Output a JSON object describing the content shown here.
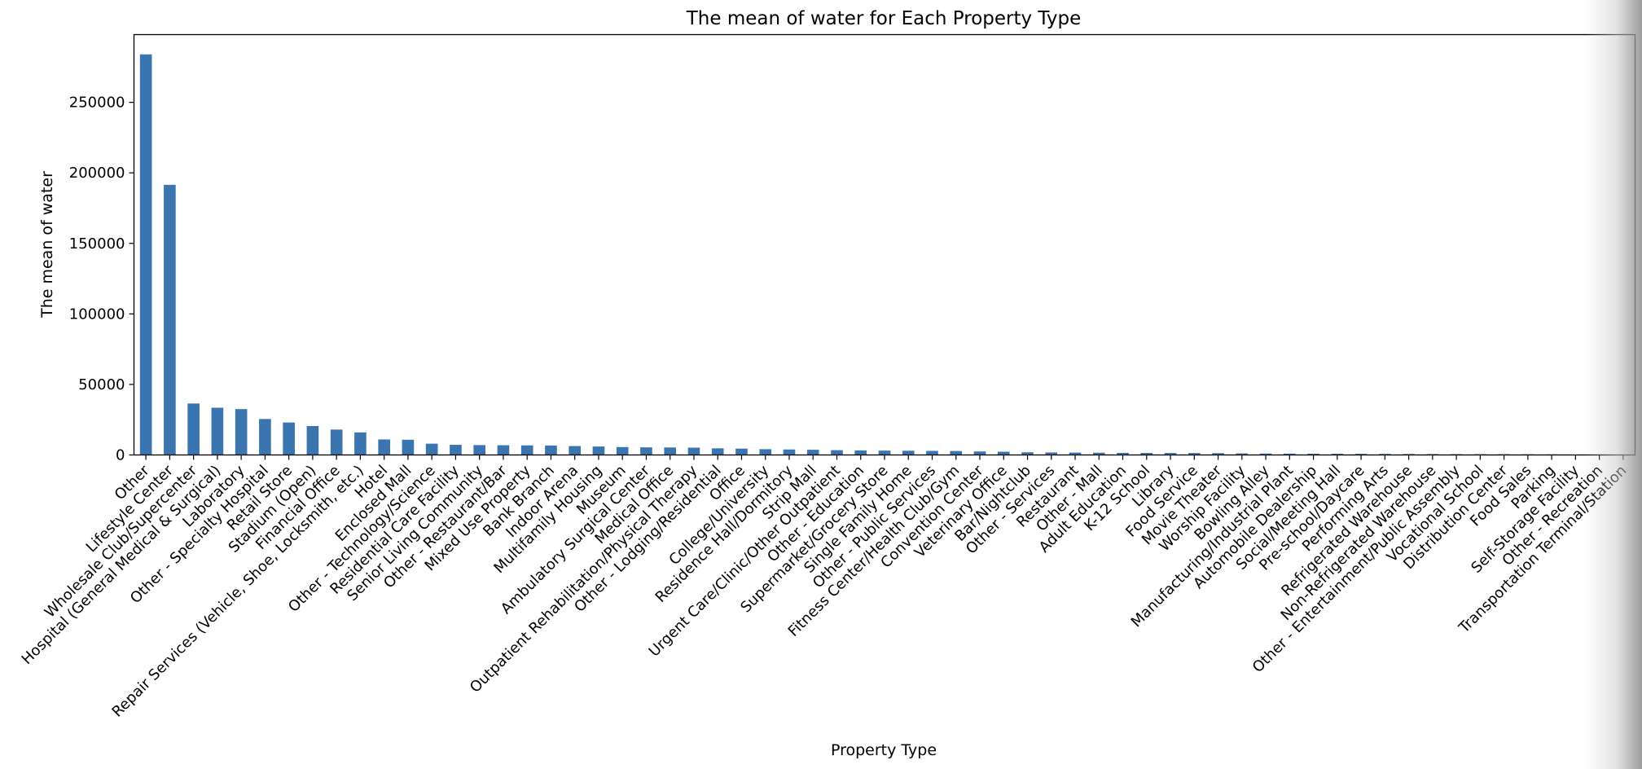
{
  "chart_data": {
    "type": "bar",
    "title": "The mean of water for Each Property Type",
    "xlabel": "Property Type",
    "ylabel": "The mean of water",
    "ylim": [
      0,
      298000
    ],
    "yticks": [
      0,
      50000,
      100000,
      150000,
      200000,
      250000
    ],
    "bar_color": "#3b75af",
    "grid": false,
    "categories": [
      "Other",
      "Lifestyle Center",
      "Wholesale Club/Supercenter",
      "Hospital (General Medical & Surgical)",
      "Laboratory",
      "Other - Specialty Hospital",
      "Retail Store",
      "Stadium (Open)",
      "Financial Office",
      "Repair Services (Vehicle, Shoe, Locksmith, etc.)",
      "Hotel",
      "Enclosed Mall",
      "Other - Technology/Science",
      "Residential Care Facility",
      "Senior Living Community",
      "Other - Restaurant/Bar",
      "Mixed Use Property",
      "Bank Branch",
      "Indoor Arena",
      "Multifamily Housing",
      "Museum",
      "Ambulatory Surgical Center",
      "Medical Office",
      "Outpatient Rehabilitation/Physical Therapy",
      "Other - Lodging/Residential",
      "Office",
      "College/University",
      "Residence Hall/Dormitory",
      "Strip Mall",
      "Urgent Care/Clinic/Other Outpatient",
      "Other - Education",
      "Supermarket/Grocery Store",
      "Single Family Home",
      "Other - Public Services",
      "Fitness Center/Health Club/Gym",
      "Convention Center",
      "Veterinary Office",
      "Bar/Nightclub",
      "Other - Services",
      "Restaurant",
      "Other - Mall",
      "Adult Education",
      "K-12 School",
      "Library",
      "Food Service",
      "Movie Theater",
      "Worship Facility",
      "Bowling Alley",
      "Manufacturing/Industrial Plant",
      "Automobile Dealership",
      "Social/Meeting Hall",
      "Pre-school/Daycare",
      "Performing Arts",
      "Refrigerated Warehouse",
      "Non-Refrigerated Warehouse",
      "Other - Entertainment/Public Assembly",
      "Vocational School",
      "Distribution Center",
      "Food Sales",
      "Parking",
      "Self-Storage Facility",
      "Other - Recreation",
      "Transportation Terminal/Station"
    ],
    "values": [
      284000,
      191500,
      36500,
      33500,
      32500,
      25500,
      23000,
      20500,
      18000,
      16000,
      11000,
      10800,
      8000,
      7200,
      7000,
      6900,
      6800,
      6700,
      6300,
      6000,
      5600,
      5400,
      5300,
      5200,
      4700,
      4500,
      4100,
      3900,
      3700,
      3400,
      3200,
      3100,
      3000,
      2900,
      2800,
      2500,
      2300,
      1900,
      1800,
      1700,
      1600,
      1500,
      1450,
      1400,
      1350,
      1300,
      1100,
      1000,
      950,
      900,
      850,
      800,
      750,
      700,
      650,
      600,
      580,
      550,
      500,
      450,
      100,
      50,
      0
    ]
  }
}
